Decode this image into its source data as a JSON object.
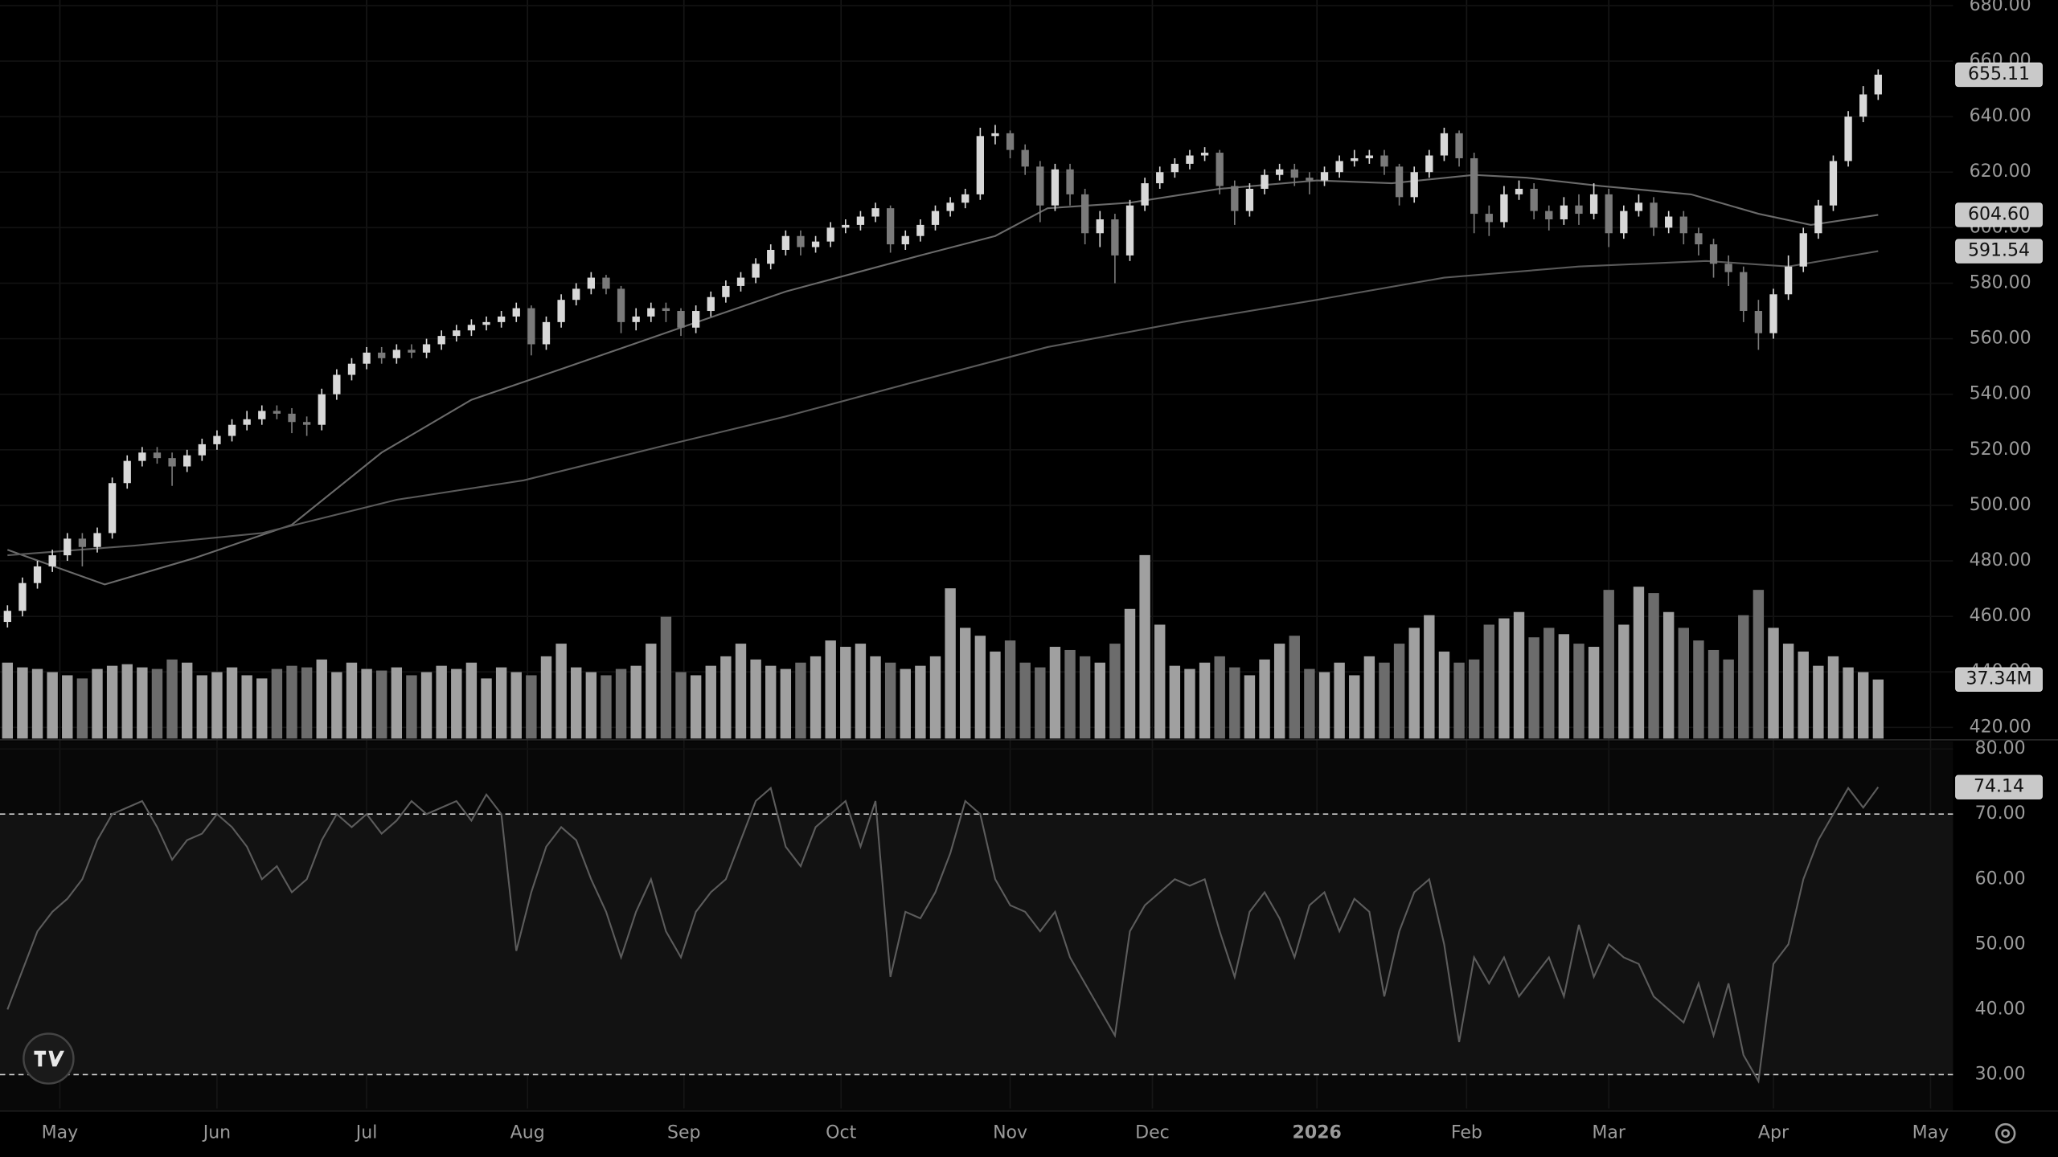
{
  "chart_data": {
    "type": "candlestick",
    "xlim": [
      -1,
      260
    ],
    "xticks": [
      {
        "value": 7,
        "label": "May"
      },
      {
        "value": 28,
        "label": "Jun"
      },
      {
        "value": 48,
        "label": "Jul"
      },
      {
        "value": 69.5,
        "label": "Aug"
      },
      {
        "value": 90.4,
        "label": "Sep"
      },
      {
        "value": 111.4,
        "label": "Oct"
      },
      {
        "value": 134,
        "label": "Nov"
      },
      {
        "value": 153,
        "label": "Dec"
      },
      {
        "value": 175,
        "label": "2026"
      },
      {
        "value": 195,
        "label": "Feb"
      },
      {
        "value": 214,
        "label": "Mar"
      },
      {
        "value": 236,
        "label": "Apr"
      },
      {
        "value": 257,
        "label": "May"
      }
    ],
    "ylim": [
      416,
      682
    ],
    "yticks": [
      {
        "value": 420,
        "label": "420.00"
      },
      {
        "value": 440,
        "label": "440.00"
      },
      {
        "value": 460,
        "label": "460.00"
      },
      {
        "value": 480,
        "label": "480.00"
      },
      {
        "value": 500,
        "label": "500.00"
      },
      {
        "value": 520,
        "label": "520.00"
      },
      {
        "value": 540,
        "label": "540.00"
      },
      {
        "value": 560,
        "label": "560.00"
      },
      {
        "value": 580,
        "label": "580.00"
      },
      {
        "value": 600,
        "label": "600.00"
      },
      {
        "value": 620,
        "label": "620.00"
      },
      {
        "value": 640,
        "label": "640.00"
      },
      {
        "value": 660,
        "label": "660.00"
      },
      {
        "value": 680,
        "label": "680.00"
      }
    ],
    "volume_lim": [
      0,
      467
    ],
    "rsi_ylim": [
      24.8,
      81.2
    ],
    "rsi_ticks": [
      {
        "value": 30,
        "label": "30.00"
      },
      {
        "value": 40,
        "label": "40.00"
      },
      {
        "value": 50,
        "label": "50.00"
      },
      {
        "value": 60,
        "label": "60.00"
      },
      {
        "value": 70,
        "label": "70.00"
      },
      {
        "value": 80,
        "label": "80.00"
      }
    ],
    "rsi_levels": [
      30,
      70
    ],
    "up_color": "#d8d8d8",
    "down_color": "#7a7a7a",
    "x": [
      0,
      2,
      4,
      6,
      8,
      10,
      12,
      14,
      16,
      18,
      20,
      22,
      24,
      26,
      28,
      30,
      32,
      34,
      36,
      38,
      40,
      42,
      44,
      46,
      48,
      50,
      52,
      54,
      56,
      58,
      60,
      62,
      64,
      66,
      68,
      70,
      72,
      74,
      76,
      78,
      80,
      82,
      84,
      86,
      88,
      90,
      92,
      94,
      96,
      98,
      100,
      102,
      104,
      106,
      108,
      110,
      112,
      114,
      116,
      118,
      120,
      122,
      124,
      126,
      128,
      130,
      132,
      134,
      136,
      138,
      140,
      142,
      144,
      146,
      148,
      150,
      152,
      154,
      156,
      158,
      160,
      162,
      164,
      166,
      168,
      170,
      172,
      174,
      176,
      178,
      180,
      182,
      184,
      186,
      188,
      190,
      192,
      194,
      196,
      198,
      200,
      202,
      204,
      206,
      208,
      210,
      212,
      214,
      216,
      218,
      220,
      222,
      224,
      226,
      228,
      230,
      232,
      234,
      236,
      238,
      240,
      242,
      244,
      246,
      248,
      250
    ],
    "open": [
      458,
      462,
      472,
      478,
      482,
      488,
      485,
      490,
      508,
      516,
      519,
      517,
      514,
      518,
      522,
      525,
      529,
      531,
      534,
      533,
      530,
      529,
      540,
      547,
      551,
      555,
      553,
      556,
      555,
      558,
      561,
      563,
      565,
      566,
      568,
      571,
      558,
      566,
      574,
      578,
      582,
      578,
      566,
      568,
      571,
      570,
      564,
      570,
      575,
      579,
      582,
      587,
      592,
      597,
      593,
      595,
      600,
      601,
      604,
      607,
      594,
      597,
      601,
      606,
      609,
      612,
      633,
      634,
      628,
      622,
      608,
      621,
      612,
      598,
      603,
      590,
      608,
      616,
      620,
      623,
      626,
      627,
      615,
      606,
      614,
      619,
      621,
      618,
      617,
      620,
      624,
      625,
      626,
      622,
      611,
      620,
      626,
      634,
      625,
      605,
      602,
      612,
      614,
      606,
      603,
      608,
      605,
      612,
      598,
      606,
      609,
      600,
      604,
      598,
      594,
      587,
      584,
      570,
      562,
      576,
      586,
      598,
      608,
      624,
      640,
      648
    ],
    "high": [
      464,
      474,
      480,
      484,
      490,
      490,
      492,
      510,
      518,
      521,
      521,
      519,
      520,
      524,
      527,
      531,
      534,
      536,
      536,
      535,
      532,
      542,
      549,
      553,
      557,
      557,
      558,
      558,
      560,
      563,
      565,
      567,
      568,
      570,
      573,
      572,
      568,
      576,
      580,
      584,
      583,
      579,
      571,
      573,
      573,
      571,
      572,
      577,
      581,
      584,
      589,
      594,
      599,
      599,
      597,
      602,
      603,
      606,
      609,
      608,
      599,
      603,
      608,
      611,
      614,
      636,
      637,
      635,
      630,
      624,
      623,
      623,
      614,
      606,
      605,
      610,
      618,
      622,
      625,
      628,
      629,
      628,
      617,
      616,
      621,
      623,
      623,
      620,
      622,
      626,
      628,
      628,
      628,
      623,
      622,
      628,
      636,
      635,
      627,
      608,
      615,
      617,
      616,
      608,
      611,
      612,
      616,
      614,
      608,
      612,
      611,
      606,
      606,
      600,
      596,
      590,
      586,
      574,
      578,
      590,
      600,
      610,
      626,
      642,
      651,
      657
    ],
    "low": [
      456,
      460,
      470,
      476,
      480,
      478,
      483,
      488,
      506,
      514,
      515,
      507,
      512,
      516,
      520,
      523,
      527,
      529,
      531,
      526,
      525,
      527,
      538,
      545,
      549,
      551,
      551,
      553,
      553,
      556,
      559,
      561,
      563,
      564,
      566,
      554,
      556,
      564,
      572,
      576,
      576,
      562,
      563,
      566,
      566,
      561,
      562,
      568,
      573,
      577,
      580,
      585,
      590,
      590,
      591,
      593,
      598,
      599,
      602,
      591,
      592,
      595,
      599,
      604,
      607,
      610,
      630,
      625,
      619,
      602,
      606,
      608,
      594,
      593,
      580,
      588,
      606,
      614,
      618,
      621,
      624,
      612,
      601,
      604,
      612,
      617,
      615,
      612,
      615,
      618,
      622,
      623,
      619,
      608,
      609,
      618,
      624,
      622,
      598,
      597,
      600,
      610,
      603,
      599,
      601,
      601,
      603,
      593,
      596,
      604,
      597,
      598,
      594,
      590,
      582,
      579,
      566,
      556,
      560,
      574,
      584,
      596,
      606,
      622,
      638,
      646
    ],
    "close": [
      462,
      472,
      478,
      482,
      488,
      485,
      490,
      508,
      516,
      519,
      517,
      514,
      518,
      522,
      525,
      529,
      531,
      534,
      533,
      530,
      529,
      540,
      547,
      551,
      555,
      553,
      556,
      555,
      558,
      561,
      563,
      565,
      566,
      568,
      571,
      558,
      566,
      574,
      578,
      582,
      578,
      566,
      568,
      571,
      570,
      564,
      570,
      575,
      579,
      582,
      587,
      592,
      597,
      593,
      595,
      600,
      601,
      604,
      607,
      594,
      597,
      601,
      606,
      609,
      612,
      633,
      634,
      628,
      622,
      608,
      621,
      612,
      598,
      603,
      590,
      608,
      616,
      620,
      623,
      626,
      627,
      615,
      606,
      614,
      619,
      621,
      618,
      617,
      620,
      624,
      625,
      626,
      622,
      611,
      620,
      626,
      634,
      625,
      605,
      602,
      612,
      614,
      606,
      603,
      608,
      605,
      612,
      598,
      606,
      609,
      600,
      604,
      598,
      594,
      587,
      584,
      570,
      562,
      576,
      586,
      598,
      608,
      624,
      640,
      648,
      655.11
    ],
    "volume": [
      48,
      45,
      44,
      42,
      40,
      38,
      44,
      46,
      47,
      45,
      44,
      50,
      48,
      40,
      42,
      45,
      40,
      38,
      44,
      46,
      45,
      50,
      42,
      48,
      44,
      43,
      45,
      40,
      42,
      46,
      44,
      48,
      38,
      45,
      42,
      40,
      52,
      60,
      45,
      42,
      40,
      44,
      46,
      60,
      77,
      42,
      40,
      46,
      52,
      60,
      50,
      46,
      44,
      48,
      52,
      62,
      58,
      60,
      52,
      48,
      44,
      46,
      52,
      95,
      70,
      65,
      55,
      62,
      48,
      45,
      58,
      56,
      52,
      48,
      60,
      82,
      116,
      72,
      46,
      44,
      48,
      52,
      45,
      40,
      50,
      60,
      65,
      44,
      42,
      48,
      40,
      52,
      48,
      60,
      70,
      78,
      55,
      48,
      50,
      72,
      76,
      80,
      64,
      70,
      66,
      60,
      58,
      94,
      72,
      96,
      92,
      80,
      70,
      62,
      56,
      50,
      78,
      94,
      70,
      60,
      55,
      46,
      52,
      45,
      42,
      37.34
    ],
    "volume_last_label": "37.34M",
    "rsi": [
      40,
      46,
      52,
      55,
      57,
      60,
      66,
      70,
      71,
      72,
      68,
      63,
      66,
      67,
      70,
      68,
      65,
      60,
      62,
      58,
      60,
      66,
      70,
      68,
      70,
      67,
      69,
      72,
      70,
      71,
      72,
      69,
      73,
      70,
      49,
      58,
      65,
      68,
      66,
      60,
      55,
      48,
      55,
      60,
      52,
      48,
      55,
      58,
      60,
      66,
      72,
      74,
      65,
      62,
      68,
      70,
      72,
      65,
      72,
      45,
      55,
      54,
      58,
      64,
      72,
      70,
      60,
      56,
      55,
      52,
      55,
      48,
      44,
      40,
      36,
      52,
      56,
      58,
      60,
      59,
      60,
      52,
      45,
      55,
      58,
      54,
      48,
      56,
      58,
      52,
      57,
      55,
      42,
      52,
      58,
      60,
      50,
      35,
      48,
      44,
      48,
      42,
      45,
      48,
      42,
      53,
      45,
      50,
      48,
      47,
      42,
      40,
      38,
      44,
      36,
      44,
      33,
      29,
      47,
      50,
      60,
      66,
      70,
      74,
      71,
      74.14
    ],
    "series": [
      {
        "color": "#6a6a6a",
        "x": [
          0,
          13,
          25,
          38,
          50,
          62,
          75,
          90,
          104,
          122,
          132,
          139,
          150,
          162,
          175,
          185,
          196,
          203,
          213,
          225,
          234,
          241,
          250
        ],
        "values": [
          484,
          471.5,
          481,
          493,
          519,
          538,
          550,
          564,
          577,
          590,
          597,
          607,
          609,
          614,
          617,
          616,
          619,
          618,
          615,
          612,
          605,
          601,
          604.6
        ],
        "last_label": "604.60"
      },
      {
        "color": "#5a5a5a",
        "x": [
          0,
          17,
          34,
          52,
          69,
          87,
          104,
          122,
          139,
          157,
          175,
          192,
          210,
          227,
          238,
          250
        ],
        "values": [
          482,
          485.5,
          490,
          502,
          509,
          521,
          532,
          545,
          557,
          566,
          574,
          582,
          586,
          588,
          586,
          591.54
        ],
        "last_label": "591.54"
      }
    ]
  }
}
